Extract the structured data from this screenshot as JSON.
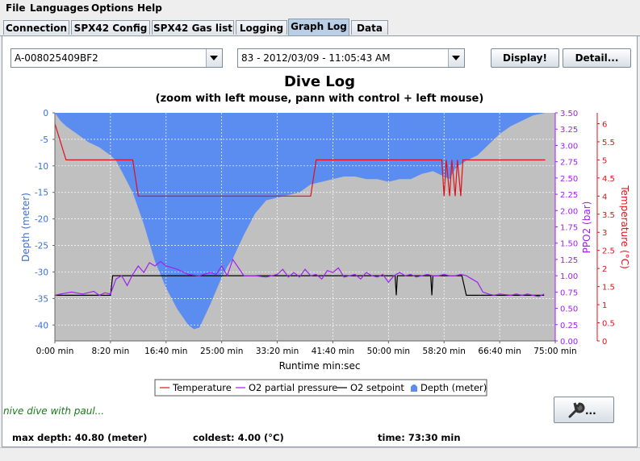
{
  "menu": [
    "File",
    "Languages",
    "Options",
    "Help"
  ],
  "tabs": [
    "Connection",
    "SPX42 Config",
    "SPX42 Gas list",
    "Logging",
    "Graph Log",
    "Data"
  ],
  "active_tab": "Graph Log",
  "device_select": "A-008025409BF2",
  "dive_select": "83 - 2012/03/09 - 11:05:43 AM",
  "buttons": {
    "display": "Display!",
    "detail": "Detail..."
  },
  "note": "nive dive with paul...",
  "footer": {
    "max_depth": "max depth: 40.80 (meter)",
    "coldest": "coldest: 4.00 (°C)",
    "time": "time: 73:30 min"
  },
  "colors": {
    "depth_fill": "#5b8cf0",
    "plot_bg": "#c0c0c0",
    "temperature": "#e0111a",
    "ppo2": "#a020f0",
    "setpoint": "#000000"
  },
  "tool_icon": "wrench-icon",
  "chart_data": {
    "type": "area",
    "title": "Dive Log",
    "subtitle": "(zoom with left mouse, pann with control + left mouse)",
    "xlabel": "Runtime min:sec",
    "ylabel_left": "Depth (meter)",
    "ylabel_mid": "PPO2 (bar)",
    "ylabel_right": "Temperature (°C)",
    "grid": true,
    "legend_position": "bottom",
    "xlim": [
      0,
      4500
    ],
    "ylim_depth": [
      -43,
      0
    ],
    "ylim_ppo2": [
      0,
      3.5
    ],
    "ylim_temp": [
      0,
      6.3
    ],
    "x_ticks": [
      {
        "v": 0,
        "label": "0:00 min"
      },
      {
        "v": 500,
        "label": "8:20 min"
      },
      {
        "v": 1000,
        "label": "16:40 min"
      },
      {
        "v": 1500,
        "label": "25:00 min"
      },
      {
        "v": 2000,
        "label": "33:20 min"
      },
      {
        "v": 2500,
        "label": "41:40 min"
      },
      {
        "v": 3000,
        "label": "50:00 min"
      },
      {
        "v": 3500,
        "label": "58:20 min"
      },
      {
        "v": 4000,
        "label": "66:40 min"
      },
      {
        "v": 4500,
        "label": "75:00 min"
      }
    ],
    "depth_ticks": [
      0,
      -5,
      -10,
      -15,
      -20,
      -25,
      -30,
      -35,
      -40
    ],
    "ppo2_ticks": [
      0.0,
      0.25,
      0.5,
      0.75,
      1.0,
      1.25,
      1.5,
      1.75,
      2.0,
      2.25,
      2.5,
      2.75,
      3.0,
      3.25,
      3.5
    ],
    "temp_ticks": [
      0,
      0.5,
      1,
      1.5,
      2,
      2.5,
      3,
      3.5,
      4,
      4.5,
      5,
      5.5,
      6
    ],
    "series": [
      {
        "name": "Depth (meter)",
        "type": "area",
        "x": [
          0,
          50,
          100,
          200,
          300,
          400,
          500,
          550,
          600,
          700,
          800,
          900,
          1000,
          1100,
          1200,
          1250,
          1300,
          1400,
          1500,
          1550,
          1600,
          1700,
          1800,
          1900,
          2000,
          2100,
          2200,
          2300,
          2400,
          2500,
          2600,
          2700,
          2800,
          2900,
          3000,
          3100,
          3200,
          3300,
          3400,
          3500,
          3550,
          3600,
          3700,
          3800,
          3900,
          4000,
          4100,
          4200,
          4300,
          4410
        ],
        "values": [
          0,
          -1.5,
          -2.5,
          -4,
          -5.5,
          -6.5,
          -8,
          -9,
          -11,
          -15,
          -21,
          -28,
          -33,
          -37,
          -40,
          -40.8,
          -40.5,
          -36,
          -31,
          -29,
          -27.5,
          -23,
          -19,
          -16.5,
          -16,
          -15.5,
          -15,
          -13.5,
          -13,
          -12.5,
          -12,
          -12,
          -12.5,
          -12.5,
          -13,
          -12.5,
          -12.5,
          -11.5,
          -11,
          -12,
          -12.5,
          -10.5,
          -9,
          -8,
          -6,
          -4,
          -2.5,
          -1.5,
          -0.5,
          0
        ]
      },
      {
        "name": "Temperature",
        "type": "line",
        "x": [
          0,
          50,
          100,
          600,
          700,
          750,
          2250,
          2300,
          2350,
          3450,
          3480,
          3500,
          3520,
          3550,
          3570,
          3600,
          3620,
          3650,
          3670,
          3700,
          4410
        ],
        "values": [
          6,
          5.5,
          5,
          5,
          5,
          4,
          4,
          4,
          5,
          5,
          5,
          4,
          5,
          4,
          5,
          4,
          5,
          4,
          5,
          5,
          5
        ]
      },
      {
        "name": "O2 partial pressure",
        "type": "line",
        "x": [
          0,
          50,
          150,
          250,
          350,
          400,
          450,
          500,
          550,
          600,
          650,
          700,
          750,
          800,
          850,
          900,
          950,
          1000,
          1100,
          1200,
          1300,
          1400,
          1450,
          1500,
          1550,
          1600,
          1700,
          1800,
          1900,
          2000,
          2050,
          2100,
          2150,
          2200,
          2250,
          2300,
          2350,
          2400,
          2450,
          2500,
          2550,
          2600,
          2650,
          2700,
          2750,
          2800,
          2850,
          2900,
          2950,
          3000,
          3050,
          3100,
          3150,
          3200,
          3250,
          3300,
          3350,
          3400,
          3450,
          3500,
          3550,
          3600,
          3650,
          3700,
          3750,
          3800,
          3850,
          3900,
          3950,
          4000,
          4050,
          4100,
          4150,
          4200,
          4250,
          4300,
          4350,
          4400
        ],
        "values": [
          0.7,
          0.72,
          0.75,
          0.72,
          0.76,
          0.7,
          0.74,
          0.72,
          0.95,
          1.0,
          0.85,
          1.02,
          1.15,
          1.05,
          1.2,
          1.15,
          1.22,
          1.15,
          1.1,
          1.02,
          1.0,
          1.05,
          1.02,
          1.15,
          1.0,
          1.25,
          1.0,
          1.0,
          0.98,
          1.02,
          1.1,
          0.98,
          1.05,
          0.98,
          1.1,
          1.0,
          1.02,
          0.95,
          1.08,
          1.05,
          1.12,
          0.98,
          1.0,
          1.02,
          0.95,
          1.05,
          1.0,
          0.98,
          1.02,
          0.9,
          1.0,
          1.05,
          1.0,
          1.02,
          0.98,
          1.0,
          1.02,
          1.0,
          1.0,
          1.02,
          1.0,
          1.0,
          1.02,
          1.0,
          0.95,
          0.9,
          0.75,
          0.72,
          0.7,
          0.72,
          0.71,
          0.7,
          0.72,
          0.7,
          0.72,
          0.7,
          0.68,
          0.72
        ]
      },
      {
        "name": "O2 setpoint",
        "type": "line",
        "x": [
          0,
          500,
          520,
          3060,
          3070,
          3080,
          3380,
          3390,
          3400,
          3650,
          3660,
          3700,
          4400
        ],
        "values": [
          0.7,
          0.7,
          1.0,
          1.0,
          0.7,
          1.0,
          1.0,
          0.7,
          1.0,
          1.0,
          1.0,
          0.7,
          0.7
        ]
      }
    ]
  }
}
